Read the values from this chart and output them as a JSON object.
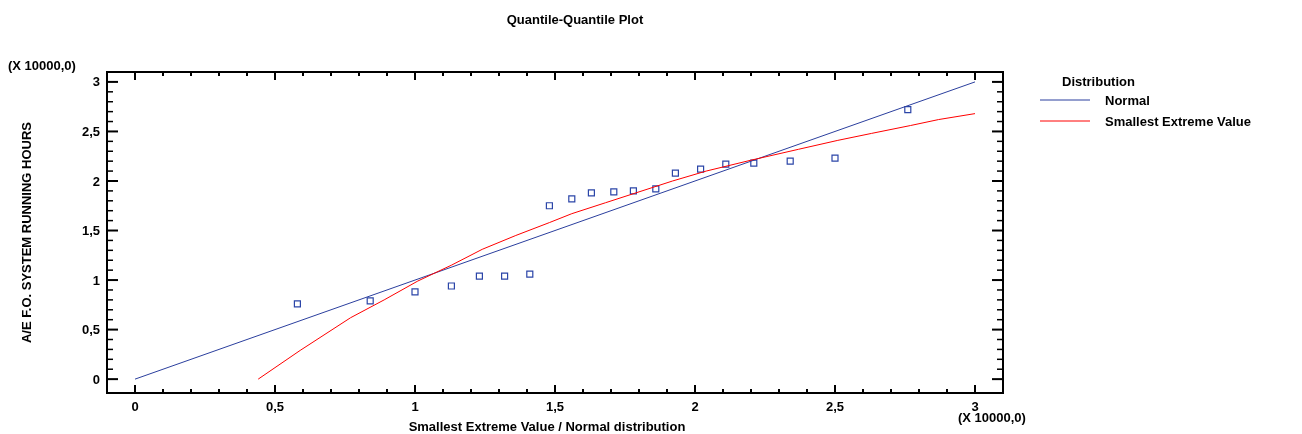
{
  "chart_data": {
    "type": "line",
    "title": "Quantile-Quantile Plot",
    "xlabel": "Smallest Extreme Value / Normal distribution",
    "ylabel": "A/E F.O. SYSTEM RUNNING HOURS",
    "legend_title": "Distribution",
    "legend": "right",
    "grid": false,
    "annotations": [
      "(X 10000,0)",
      "(X 10000,0)"
    ],
    "xlim": [
      -0.1,
      3.1
    ],
    "ylim": [
      -0.14,
      3.1
    ],
    "xticks": [
      {
        "value": 0,
        "label": "0"
      },
      {
        "value": 0.5,
        "label": "0,5"
      },
      {
        "value": 1,
        "label": "1"
      },
      {
        "value": 1.5,
        "label": "1,5"
      },
      {
        "value": 2,
        "label": "2"
      },
      {
        "value": 2.5,
        "label": "2,5"
      },
      {
        "value": 3,
        "label": "3"
      }
    ],
    "yticks": [
      {
        "value": 0,
        "label": "0"
      },
      {
        "value": 0.5,
        "label": "0,5"
      },
      {
        "value": 1,
        "label": "1"
      },
      {
        "value": 1.5,
        "label": "1,5"
      },
      {
        "value": 2,
        "label": "2"
      },
      {
        "value": 2.5,
        "label": "2,5"
      },
      {
        "value": 3,
        "label": "3"
      }
    ],
    "series": [
      {
        "type": "scatter",
        "marker": "square",
        "color": "#2b45a8",
        "x": [
          0.58,
          0.84,
          1.0,
          1.13,
          1.23,
          1.32,
          1.41,
          1.48,
          1.56,
          1.63,
          1.71,
          1.78,
          1.86,
          1.93,
          2.02,
          2.11,
          2.21,
          2.34,
          2.5,
          2.76
        ],
        "values": [
          0.76,
          0.79,
          0.88,
          0.94,
          1.04,
          1.04,
          1.06,
          1.75,
          1.82,
          1.88,
          1.89,
          1.9,
          1.92,
          2.08,
          2.12,
          2.17,
          2.18,
          2.2,
          2.23,
          2.72
        ]
      },
      {
        "name": "Normal",
        "color": "#2b3f9e",
        "x": [
          0,
          3
        ],
        "values": [
          0,
          3
        ]
      },
      {
        "name": "Smallest Extreme Value",
        "color": "#ff0000",
        "x": [
          0.44,
          0.59,
          0.77,
          0.89,
          1.01,
          1.13,
          1.24,
          1.36,
          1.48,
          1.56,
          1.68,
          1.8,
          1.92,
          2.04,
          2.2,
          2.37,
          2.51,
          2.63,
          2.77,
          2.87,
          3.0
        ],
        "values": [
          0,
          0.29,
          0.62,
          0.8,
          0.99,
          1.15,
          1.31,
          1.45,
          1.58,
          1.67,
          1.78,
          1.89,
          2.0,
          2.1,
          2.21,
          2.32,
          2.41,
          2.48,
          2.56,
          2.62,
          2.68
        ]
      }
    ]
  }
}
